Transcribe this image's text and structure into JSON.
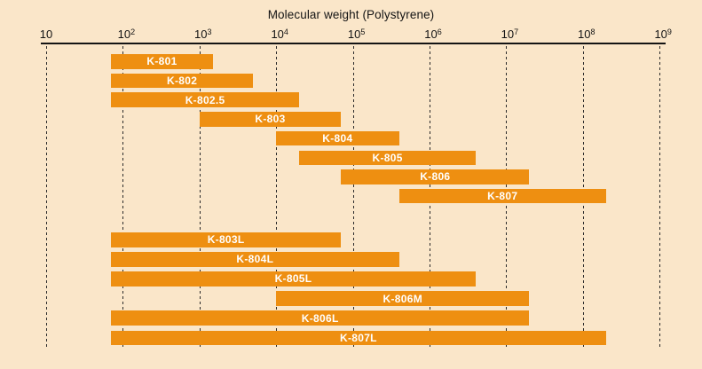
{
  "chart_data": {
    "type": "bar",
    "subtype": "horizontal-log-range-bars",
    "title": "Molecular weight (Polystyrene)",
    "xlabel": "Molecular weight (Polystyrene)",
    "ylabel": "",
    "legend": "none",
    "grid": {
      "on": true,
      "style": "dashed-vertical"
    },
    "x_axis": {
      "scale": "log10",
      "min": 10,
      "max": 1000000000,
      "ticks": [
        {
          "base": "10",
          "sup": ""
        },
        {
          "base": "10",
          "sup": "2"
        },
        {
          "base": "10",
          "sup": "3"
        },
        {
          "base": "10",
          "sup": "4"
        },
        {
          "base": "10",
          "sup": "5"
        },
        {
          "base": "10",
          "sup": "6"
        },
        {
          "base": "10",
          "sup": "7"
        },
        {
          "base": "10",
          "sup": "8"
        },
        {
          "base": "10",
          "sup": "9"
        }
      ]
    },
    "series": [
      {
        "name": "K-801",
        "group": "upper",
        "range": [
          70,
          1500
        ]
      },
      {
        "name": "K-802",
        "group": "upper",
        "range": [
          70,
          5000
        ]
      },
      {
        "name": "K-802.5",
        "group": "upper",
        "range": [
          70,
          20000
        ]
      },
      {
        "name": "K-803",
        "group": "upper",
        "range": [
          1000,
          70000
        ]
      },
      {
        "name": "K-804",
        "group": "upper",
        "range": [
          10000,
          400000
        ]
      },
      {
        "name": "K-805",
        "group": "upper",
        "range": [
          20000,
          4000000
        ]
      },
      {
        "name": "K-806",
        "group": "upper",
        "range": [
          70000,
          20000000
        ]
      },
      {
        "name": "K-807",
        "group": "upper",
        "range": [
          400000,
          200000000
        ]
      },
      {
        "name": "K-803L",
        "group": "lower",
        "range": [
          70,
          70000
        ]
      },
      {
        "name": "K-804L",
        "group": "lower",
        "range": [
          70,
          400000
        ]
      },
      {
        "name": "K-805L",
        "group": "lower",
        "range": [
          70,
          4000000
        ]
      },
      {
        "name": "K-806M",
        "group": "lower",
        "range": [
          10000,
          20000000
        ]
      },
      {
        "name": "K-806L",
        "group": "lower",
        "range": [
          70,
          20000000
        ]
      },
      {
        "name": "K-807L",
        "group": "lower",
        "range": [
          70,
          200000000
        ]
      }
    ],
    "colors": {
      "background": "#FAE6C9",
      "bar": "#EE8F11",
      "axis": "#141414",
      "bar_label": "#FFFFFF"
    }
  }
}
